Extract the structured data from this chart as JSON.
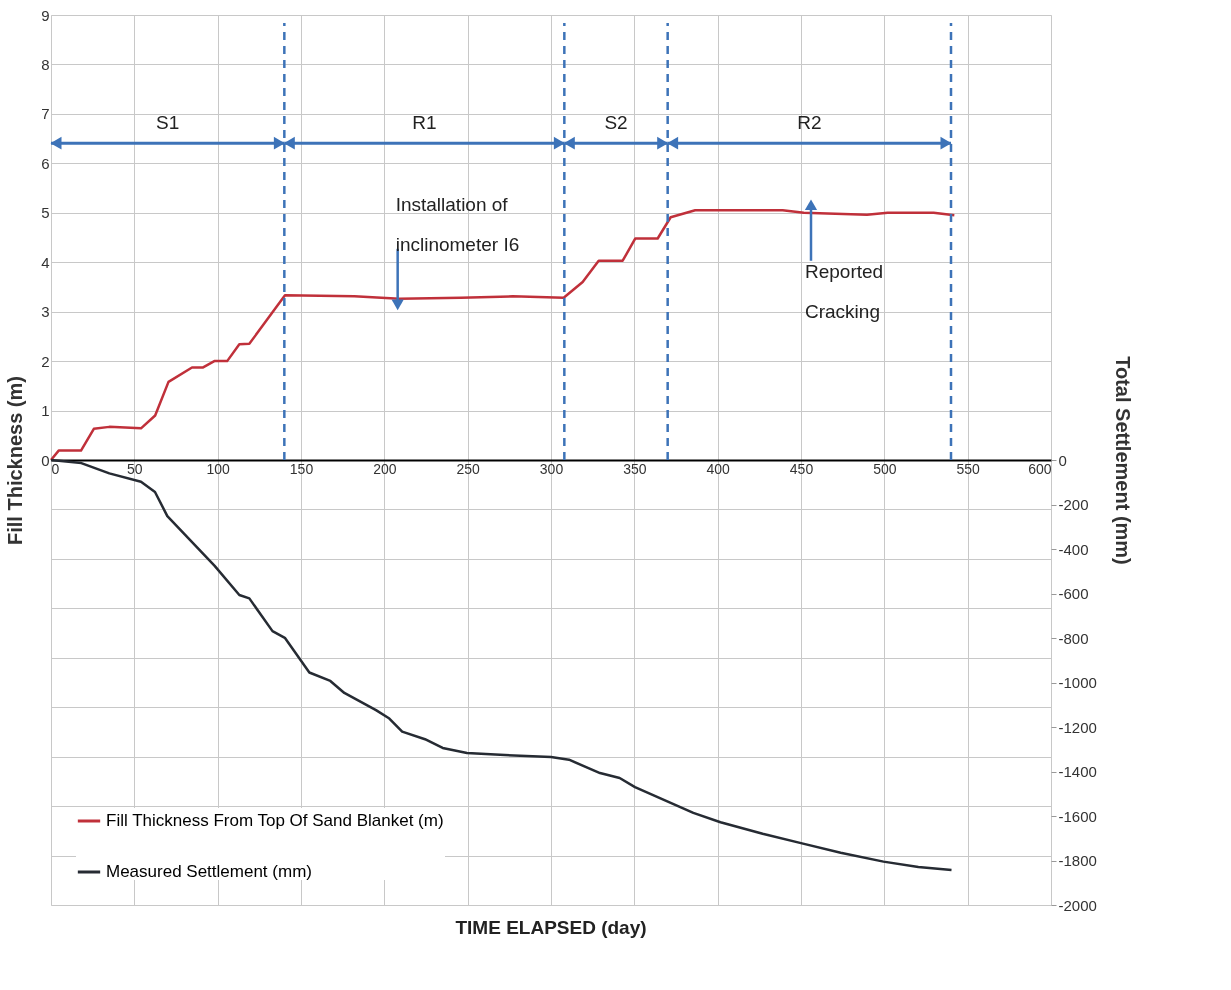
{
  "chart_data": {
    "type": "line",
    "xlabel": "TIME ELAPSED  (day)",
    "ylabel": "Fill Thickness (m)",
    "y2label": "Total Settlement (mm)",
    "xlim": [
      0,
      600
    ],
    "xticks": [
      0,
      50,
      100,
      150,
      200,
      250,
      300,
      350,
      400,
      450,
      500,
      550,
      600
    ],
    "ylim": [
      -9,
      9
    ],
    "yticks": [
      {
        "value": -9,
        "label": null
      },
      {
        "value": -8,
        "label": null
      },
      {
        "value": -7,
        "label": null
      },
      {
        "value": -6,
        "label": null
      },
      {
        "value": -5,
        "label": null
      },
      {
        "value": -4,
        "label": null
      },
      {
        "value": -3,
        "label": null
      },
      {
        "value": -2,
        "label": null
      },
      {
        "value": -1,
        "label": null
      },
      0,
      1,
      2,
      3,
      4,
      5,
      6,
      7,
      8,
      9
    ],
    "y2lim": [
      -2000,
      2000
    ],
    "y2ticks": [
      0,
      -200,
      -400,
      -600,
      -800,
      -1000,
      -1200,
      -1400,
      -1600,
      -1800,
      -2000
    ],
    "grid": true,
    "legend": "bottom left",
    "line_style": "solid",
    "marker": "none",
    "series": [
      {
        "name": "Fill Thickness From Top Of Sand Blanket (m)",
        "color": "#c0303a",
        "x": [
          0,
          4.6,
          18,
          25.7,
          35,
          54,
          62.5,
          70.5,
          84.6,
          91,
          98,
          105.7,
          113,
          119,
          140.4,
          182,
          209,
          246,
          277,
          307.6,
          319,
          328.6,
          343,
          350.6,
          364,
          371.8,
          386.5,
          439,
          451.7,
          489.6,
          502,
          529.6,
          542
        ],
        "values": [
          0,
          0.19,
          0.19,
          0.63,
          0.67,
          0.64,
          0.9,
          1.58,
          1.87,
          1.87,
          2.0,
          2.0,
          2.34,
          2.35,
          3.33,
          3.31,
          3.26,
          3.28,
          3.31,
          3.28,
          3.6,
          4.03,
          4.03,
          4.48,
          4.48,
          4.91,
          5.05,
          5.05,
          5.0,
          4.96,
          5.0,
          5.0,
          4.95
        ]
      },
      {
        "name": "Measured Settlement (mm)",
        "color": "#262b33",
        "axis": "y2",
        "x": [
          0,
          18.2,
          35,
          54,
          62.4,
          69.8,
          98.2,
          113,
          119,
          132.9,
          140.3,
          155,
          167.6,
          176,
          195,
          203,
          210.7,
          224.4,
          235,
          249.6,
          266.5,
          300,
          310.8,
          329.4,
          341.2,
          350.4,
          385.4,
          401.7,
          427,
          450.6,
          473.8,
          499.5,
          520.4,
          540.3
        ],
        "values": [
          0,
          -14,
          -60,
          -98,
          -144,
          -252,
          -476,
          -607,
          -622,
          -769,
          -799,
          -955,
          -993,
          -1047,
          -1124,
          -1162,
          -1221,
          -1255,
          -1294,
          -1317,
          -1324,
          -1335,
          -1347,
          -1407,
          -1429,
          -1470,
          -1586,
          -1628,
          -1680,
          -1723,
          -1765,
          -1805,
          -1829,
          -1843
        ]
      }
    ],
    "ref_lines": [
      {
        "axis": "x",
        "value": 140,
        "color": "#3d73b8",
        "line_style": "dashed"
      },
      {
        "axis": "x",
        "value": 308,
        "color": "#3d73b8",
        "line_style": "dashed"
      },
      {
        "axis": "x",
        "value": 370,
        "color": "#3d73b8",
        "line_style": "dashed"
      },
      {
        "axis": "x",
        "value": 540,
        "color": "#3d73b8",
        "line_style": "dashed"
      }
    ],
    "annotations": [
      "S1",
      "R1",
      "S2",
      "R2",
      {
        "text": "Installation of\ninclinometer I6",
        "x": 208,
        "y": 3.3
      },
      {
        "text": "Reported\nCracking",
        "x": 456,
        "y": 5.0
      }
    ]
  }
}
